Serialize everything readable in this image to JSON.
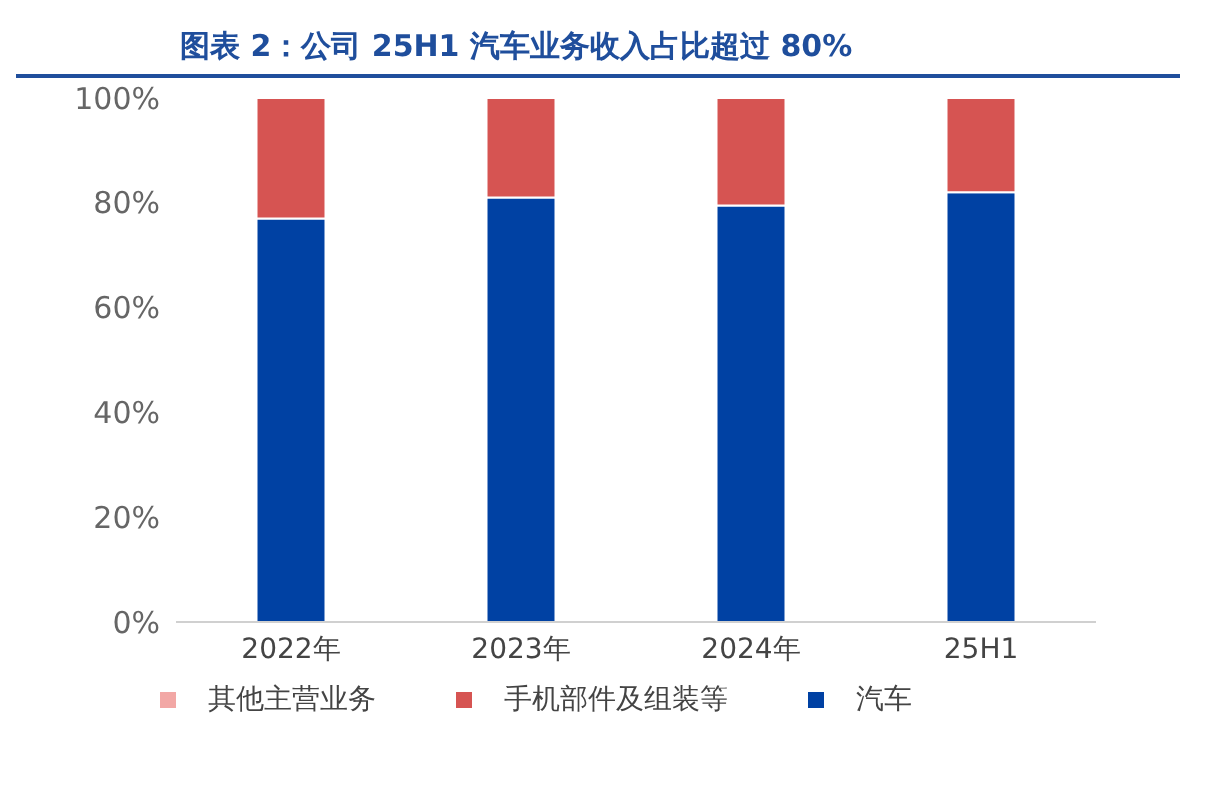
{
  "chart_data": {
    "type": "bar",
    "title": "图表 2：公司 25H1 汽车业务收入占比超过 80%",
    "categories": [
      "2022年",
      "2023年",
      "2024年",
      "25H1"
    ],
    "stacked": true,
    "series": [
      {
        "name": "汽车",
        "color": "#0041a3",
        "values": [
          77,
          81,
          79.5,
          82
        ]
      },
      {
        "name": "手机部件及组装等",
        "color": "#d65452",
        "values": [
          23,
          19,
          20.5,
          18
        ]
      },
      {
        "name": "其他主营业务",
        "color": "#f2a7a5",
        "values": [
          0,
          0,
          0,
          0
        ]
      }
    ],
    "ylim": [
      0,
      100
    ],
    "yticks": [
      {
        "value": 0,
        "label": "0%"
      },
      {
        "value": 20,
        "label": "20%"
      },
      {
        "value": 40,
        "label": "40%"
      },
      {
        "value": 60,
        "label": "60%"
      },
      {
        "value": 80,
        "label": "80%"
      },
      {
        "value": 100,
        "label": "100%"
      }
    ],
    "grid": false,
    "legend": "bottom"
  }
}
